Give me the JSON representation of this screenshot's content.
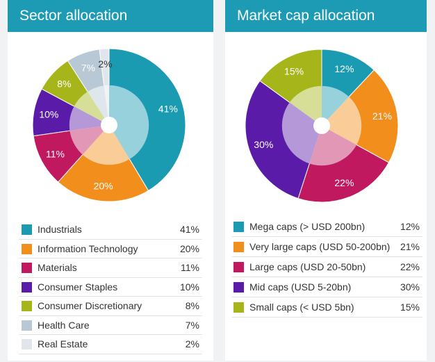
{
  "chart_data": [
    {
      "type": "pie",
      "title": "Sector allocation",
      "categories": [
        "Industrials",
        "Information Technology",
        "Materials",
        "Consumer Staples",
        "Consumer Discretionary",
        "Health Care",
        "Real Estate"
      ],
      "values": [
        41,
        20,
        11,
        10,
        8,
        7,
        2
      ],
      "labels": [
        "41%",
        "20%",
        "11%",
        "10%",
        "8%",
        "7%",
        "2%"
      ],
      "colors": [
        "#1a9bb2",
        "#f28f1c",
        "#c0195f",
        "#5a1ca8",
        "#a5b51a",
        "#b9c8d5",
        "#e0e6ec"
      ],
      "label_colors": [
        "#ffffff",
        "#ffffff",
        "#ffffff",
        "#ffffff",
        "#ffffff",
        "#ffffff",
        "#333333"
      ]
    },
    {
      "type": "pie",
      "title": "Market cap allocation",
      "categories": [
        "Mega caps (> USD 200bn)",
        "Very large caps (USD 50-200bn)",
        "Large caps (USD 20-50bn)",
        "Mid caps (USD 5-20bn)",
        "Small caps (< USD 5bn)"
      ],
      "values": [
        12,
        21,
        22,
        30,
        15
      ],
      "labels": [
        "12%",
        "21%",
        "22%",
        "30%",
        "15%"
      ],
      "colors": [
        "#1a9bb2",
        "#f28f1c",
        "#c0195f",
        "#5a1ca8",
        "#a5b51a"
      ],
      "label_colors": [
        "#ffffff",
        "#ffffff",
        "#ffffff",
        "#ffffff",
        "#ffffff"
      ]
    }
  ]
}
